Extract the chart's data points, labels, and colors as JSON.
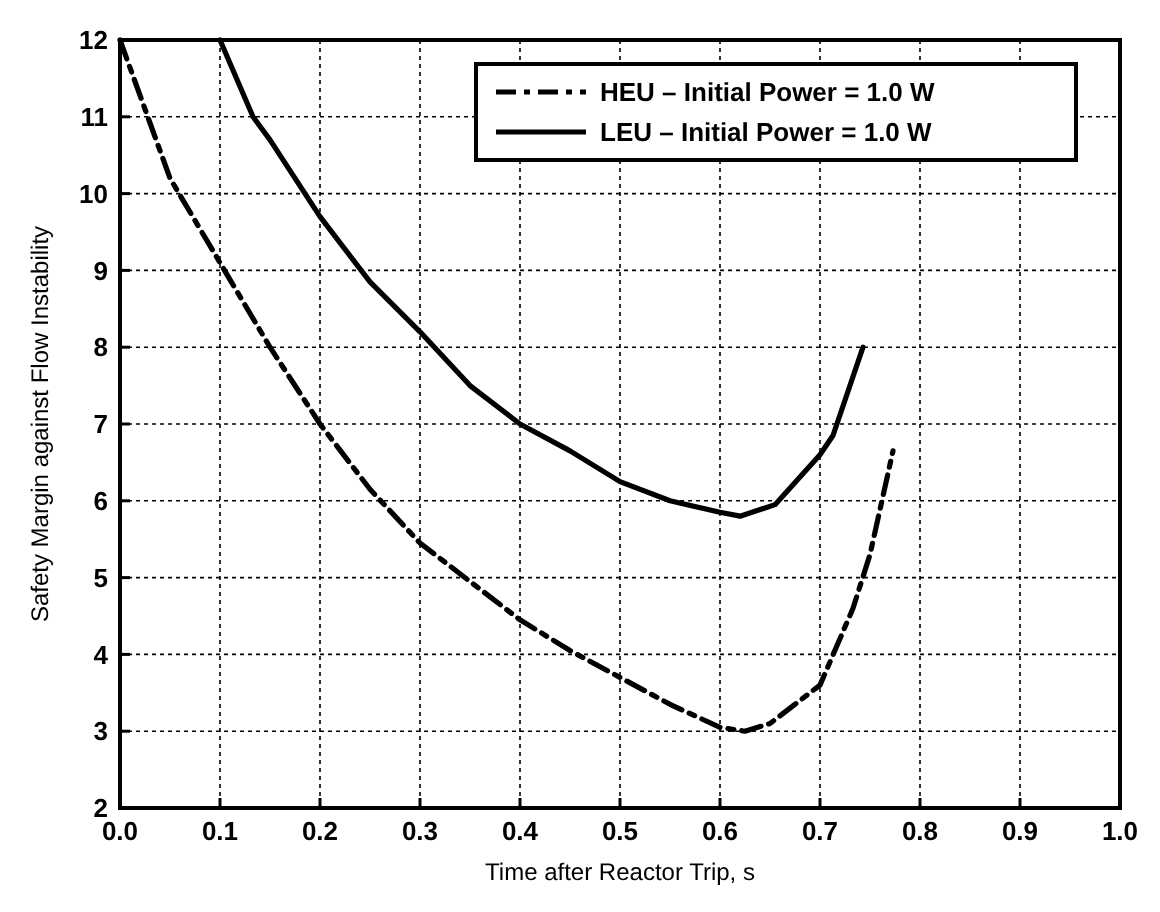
{
  "chart_data": {
    "type": "line",
    "xlabel": "Time after Reactor Trip, s",
    "ylabel": "Safety Margin against Flow Instability",
    "xlim": [
      0,
      1
    ],
    "ylim": [
      2,
      12
    ],
    "xticks": [
      {
        "value": 0,
        "label": "0.0"
      },
      {
        "value": 0.1,
        "label": "0.1"
      },
      {
        "value": 0.2,
        "label": "0.2"
      },
      {
        "value": 0.3,
        "label": "0.3"
      },
      {
        "value": 0.4,
        "label": "0.4"
      },
      {
        "value": 0.5,
        "label": "0.5"
      },
      {
        "value": 0.6,
        "label": "0.6"
      },
      {
        "value": 0.7,
        "label": "0.7"
      },
      {
        "value": 0.8,
        "label": "0.8"
      },
      {
        "value": 0.9,
        "label": "0.9"
      },
      {
        "value": 1,
        "label": "1.0"
      }
    ],
    "yticks": [
      2,
      3,
      4,
      5,
      6,
      7,
      8,
      9,
      10,
      11,
      12
    ],
    "grid": true,
    "legend": "top right",
    "marker": "none",
    "series": [
      {
        "name": "HEU – Initial Power = 1.0 W",
        "color": "#000000",
        "line_style": "dashed",
        "x": [
          0,
          0.05,
          0.1,
          0.15,
          0.2,
          0.25,
          0.3,
          0.35,
          0.4,
          0.45,
          0.5,
          0.55,
          0.6,
          0.625,
          0.65,
          0.7,
          0.733,
          0.75,
          0.773
        ],
        "values": [
          12,
          10.2,
          9.1,
          8,
          7,
          6.15,
          5.45,
          4.95,
          4.45,
          4.05,
          3.7,
          3.35,
          3.05,
          3,
          3.1,
          3.6,
          4.6,
          5.3,
          6.65
        ]
      },
      {
        "name": "LEU – Initial Power = 1.0 W",
        "color": "#000000",
        "line_style": "solid",
        "x": [
          0.1,
          0.133,
          0.15,
          0.2,
          0.25,
          0.3,
          0.35,
          0.4,
          0.45,
          0.5,
          0.55,
          0.6,
          0.62,
          0.655,
          0.7,
          0.713,
          0.743
        ],
        "values": [
          12,
          11,
          10.7,
          9.7,
          8.85,
          8.2,
          7.5,
          7,
          6.65,
          6.25,
          6,
          5.85,
          5.8,
          5.95,
          6.6,
          6.85,
          8
        ]
      }
    ]
  }
}
